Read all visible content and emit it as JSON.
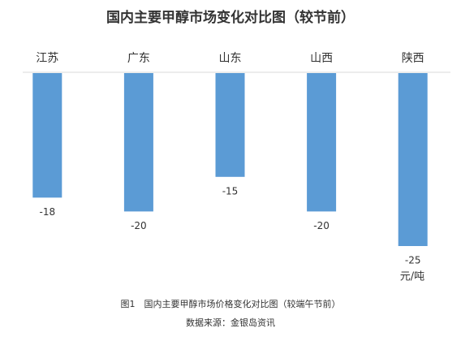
{
  "chart_data": {
    "type": "bar",
    "title": "国内主要甲醇市场变化对比图（较节前）",
    "categories": [
      "江苏",
      "广东",
      "山东",
      "山西",
      "陕西"
    ],
    "values": [
      -18,
      -20,
      -15,
      -20,
      -25
    ],
    "color": "#5b9bd5",
    "ylim": [
      -25,
      0
    ],
    "unit": "元/吨",
    "caption": "图1　国内主要甲醇市场价格变化对比图（较端午节前）",
    "source": "数据来源：金银岛资讯"
  }
}
